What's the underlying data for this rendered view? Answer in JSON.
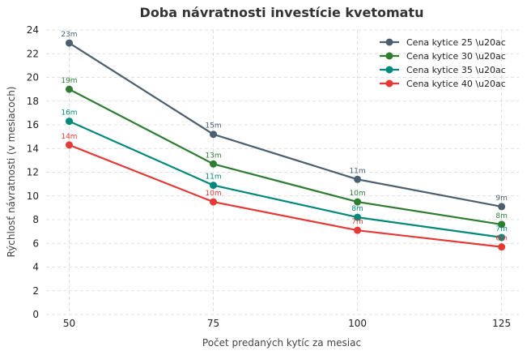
{
  "chart_data": {
    "type": "line",
    "title": "Doba návratnosti investície kvetomatu",
    "xlabel": "Počet predaných kytíc za mesiac",
    "ylabel": "Rýchlosť návratnosti (v mesiacoch)",
    "x": [
      50,
      75,
      100,
      125
    ],
    "xticks": [
      "50",
      "75",
      "100",
      "125"
    ],
    "yticks": [
      "0",
      "2",
      "4",
      "6",
      "8",
      "10",
      "12",
      "14",
      "16",
      "18",
      "20",
      "22",
      "24"
    ],
    "ylim": [
      0,
      24
    ],
    "xlim": [
      46,
      128
    ],
    "grid": true,
    "legend_position": "top-right",
    "series": [
      {
        "name": "Cena kytice 25 \\u20ac",
        "color": "#4a5f6f",
        "values": [
          22.9,
          15.2,
          11.4,
          9.1
        ],
        "labels": [
          "23m",
          "15m",
          "11m",
          "9m"
        ]
      },
      {
        "name": "Cena kytice 30 \\u20ac",
        "color": "#2e7d32",
        "values": [
          19.0,
          12.7,
          9.5,
          7.6
        ],
        "labels": [
          "19m",
          "13m",
          "10m",
          "8m"
        ]
      },
      {
        "name": "Cena kytice 35 \\u20ac",
        "color": "#00897b",
        "values": [
          16.3,
          10.9,
          8.2,
          6.5
        ],
        "labels": [
          "16m",
          "11m",
          "8m",
          "7m"
        ]
      },
      {
        "name": "Cena kytice 40 \\u20ac",
        "color": "#e53935",
        "values": [
          14.3,
          9.5,
          7.1,
          5.7
        ],
        "labels": [
          "14m",
          "10m",
          "7m",
          "6m"
        ]
      }
    ]
  }
}
